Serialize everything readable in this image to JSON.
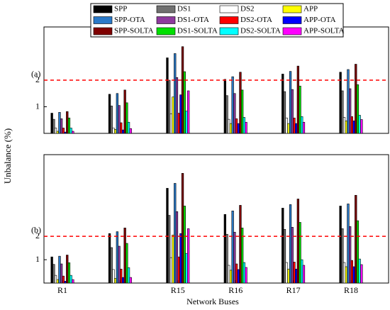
{
  "chart_data": [
    {
      "type": "bar",
      "label": "(a)",
      "ylabel": "Unbalance (%)",
      "ylim": [
        0,
        4
      ],
      "yticks": [
        1,
        2
      ],
      "hline": 2,
      "series": [
        {
          "name": "SPP",
          "color": "#000000",
          "values": [
            0.76,
            1.47,
            2.84,
            2.03,
            2.23,
            2.3
          ]
        },
        {
          "name": "DS1",
          "color": "#707070",
          "values": [
            0.53,
            1.03,
            2.0,
            1.42,
            1.57,
            1.6
          ]
        },
        {
          "name": "DS2",
          "color": "#ffffff",
          "values": [
            0.2,
            0.2,
            0.74,
            0.53,
            0.58,
            0.6
          ]
        },
        {
          "name": "APP",
          "color": "#ffff00",
          "values": [
            0.08,
            0.15,
            1.37,
            0.37,
            0.37,
            0.47
          ]
        },
        {
          "name": "SPP-OTA",
          "color": "#2a7ac9",
          "values": [
            0.79,
            1.5,
            3.0,
            2.13,
            2.33,
            2.4
          ]
        },
        {
          "name": "DS1-OTA",
          "color": "#8e3a9e",
          "values": [
            0.55,
            1.05,
            2.1,
            1.5,
            1.65,
            1.68
          ]
        },
        {
          "name": "DS2-OTA",
          "color": "#ff0000",
          "values": [
            0.2,
            0.4,
            0.76,
            0.55,
            0.58,
            0.63
          ]
        },
        {
          "name": "APP-OTA",
          "color": "#0000ff",
          "values": [
            0.05,
            0.13,
            1.45,
            0.37,
            0.37,
            0.47
          ]
        },
        {
          "name": "SPP-SOLTA",
          "color": "#7f0000",
          "values": [
            0.82,
            1.63,
            3.26,
            2.3,
            2.53,
            2.6
          ]
        },
        {
          "name": "DS1-SOLTA",
          "color": "#00e000",
          "values": [
            0.58,
            1.15,
            2.32,
            1.63,
            1.78,
            1.83
          ]
        },
        {
          "name": "DS2-SOLTA",
          "color": "#00ffff",
          "values": [
            0.2,
            0.42,
            0.84,
            0.6,
            0.63,
            0.68
          ]
        },
        {
          "name": "APP-SOLTA",
          "color": "#ff00ff",
          "values": [
            0.08,
            0.18,
            1.6,
            0.42,
            0.42,
            0.52
          ]
        }
      ]
    },
    {
      "type": "bar",
      "label": "(b)",
      "xlabel": "Network Buses",
      "categories": [
        "R1",
        null,
        "R15",
        "R16",
        "R17",
        "R18"
      ],
      "ylim": [
        0,
        5.5
      ],
      "yticks": [
        1,
        2
      ],
      "hline": 2,
      "series": [
        {
          "name": "SPP",
          "color": "#000000",
          "values": [
            1.12,
            2.12,
            4.06,
            2.94,
            3.21,
            3.3
          ]
        },
        {
          "name": "DS1",
          "color": "#707070",
          "values": [
            0.8,
            1.52,
            2.9,
            2.09,
            2.3,
            2.33
          ]
        },
        {
          "name": "DS2",
          "color": "#ffffff",
          "values": [
            0.33,
            0.58,
            1.09,
            0.76,
            0.88,
            0.88
          ]
        },
        {
          "name": "APP",
          "color": "#ffff00",
          "values": [
            0.15,
            0.2,
            2.06,
            0.55,
            0.6,
            0.7
          ]
        },
        {
          "name": "SPP-OTA",
          "color": "#2a7ac9",
          "values": [
            1.15,
            2.2,
            4.27,
            3.09,
            3.36,
            3.39
          ]
        },
        {
          "name": "DS1-OTA",
          "color": "#8e3a9e",
          "values": [
            0.82,
            1.58,
            3.06,
            2.18,
            2.39,
            2.42
          ]
        },
        {
          "name": "DS2-OTA",
          "color": "#ff0000",
          "values": [
            0.3,
            0.6,
            1.12,
            0.82,
            0.9,
            0.97
          ]
        },
        {
          "name": "APP-OTA",
          "color": "#0000ff",
          "values": [
            0.08,
            0.24,
            2.12,
            0.58,
            0.6,
            0.7
          ]
        },
        {
          "name": "SPP-SOLTA",
          "color": "#7f0000",
          "values": [
            1.2,
            2.36,
            4.7,
            3.33,
            3.6,
            3.76
          ]
        },
        {
          "name": "DS1-SOLTA",
          "color": "#00e000",
          "values": [
            0.87,
            1.7,
            3.3,
            2.36,
            2.6,
            2.67
          ]
        },
        {
          "name": "DS2-SOLTA",
          "color": "#00ffff",
          "values": [
            0.33,
            0.66,
            1.27,
            0.88,
            1.0,
            1.03
          ]
        },
        {
          "name": "APP-SOLTA",
          "color": "#ff00ff",
          "values": [
            0.15,
            0.24,
            2.33,
            0.67,
            0.76,
            0.79
          ]
        }
      ]
    }
  ]
}
